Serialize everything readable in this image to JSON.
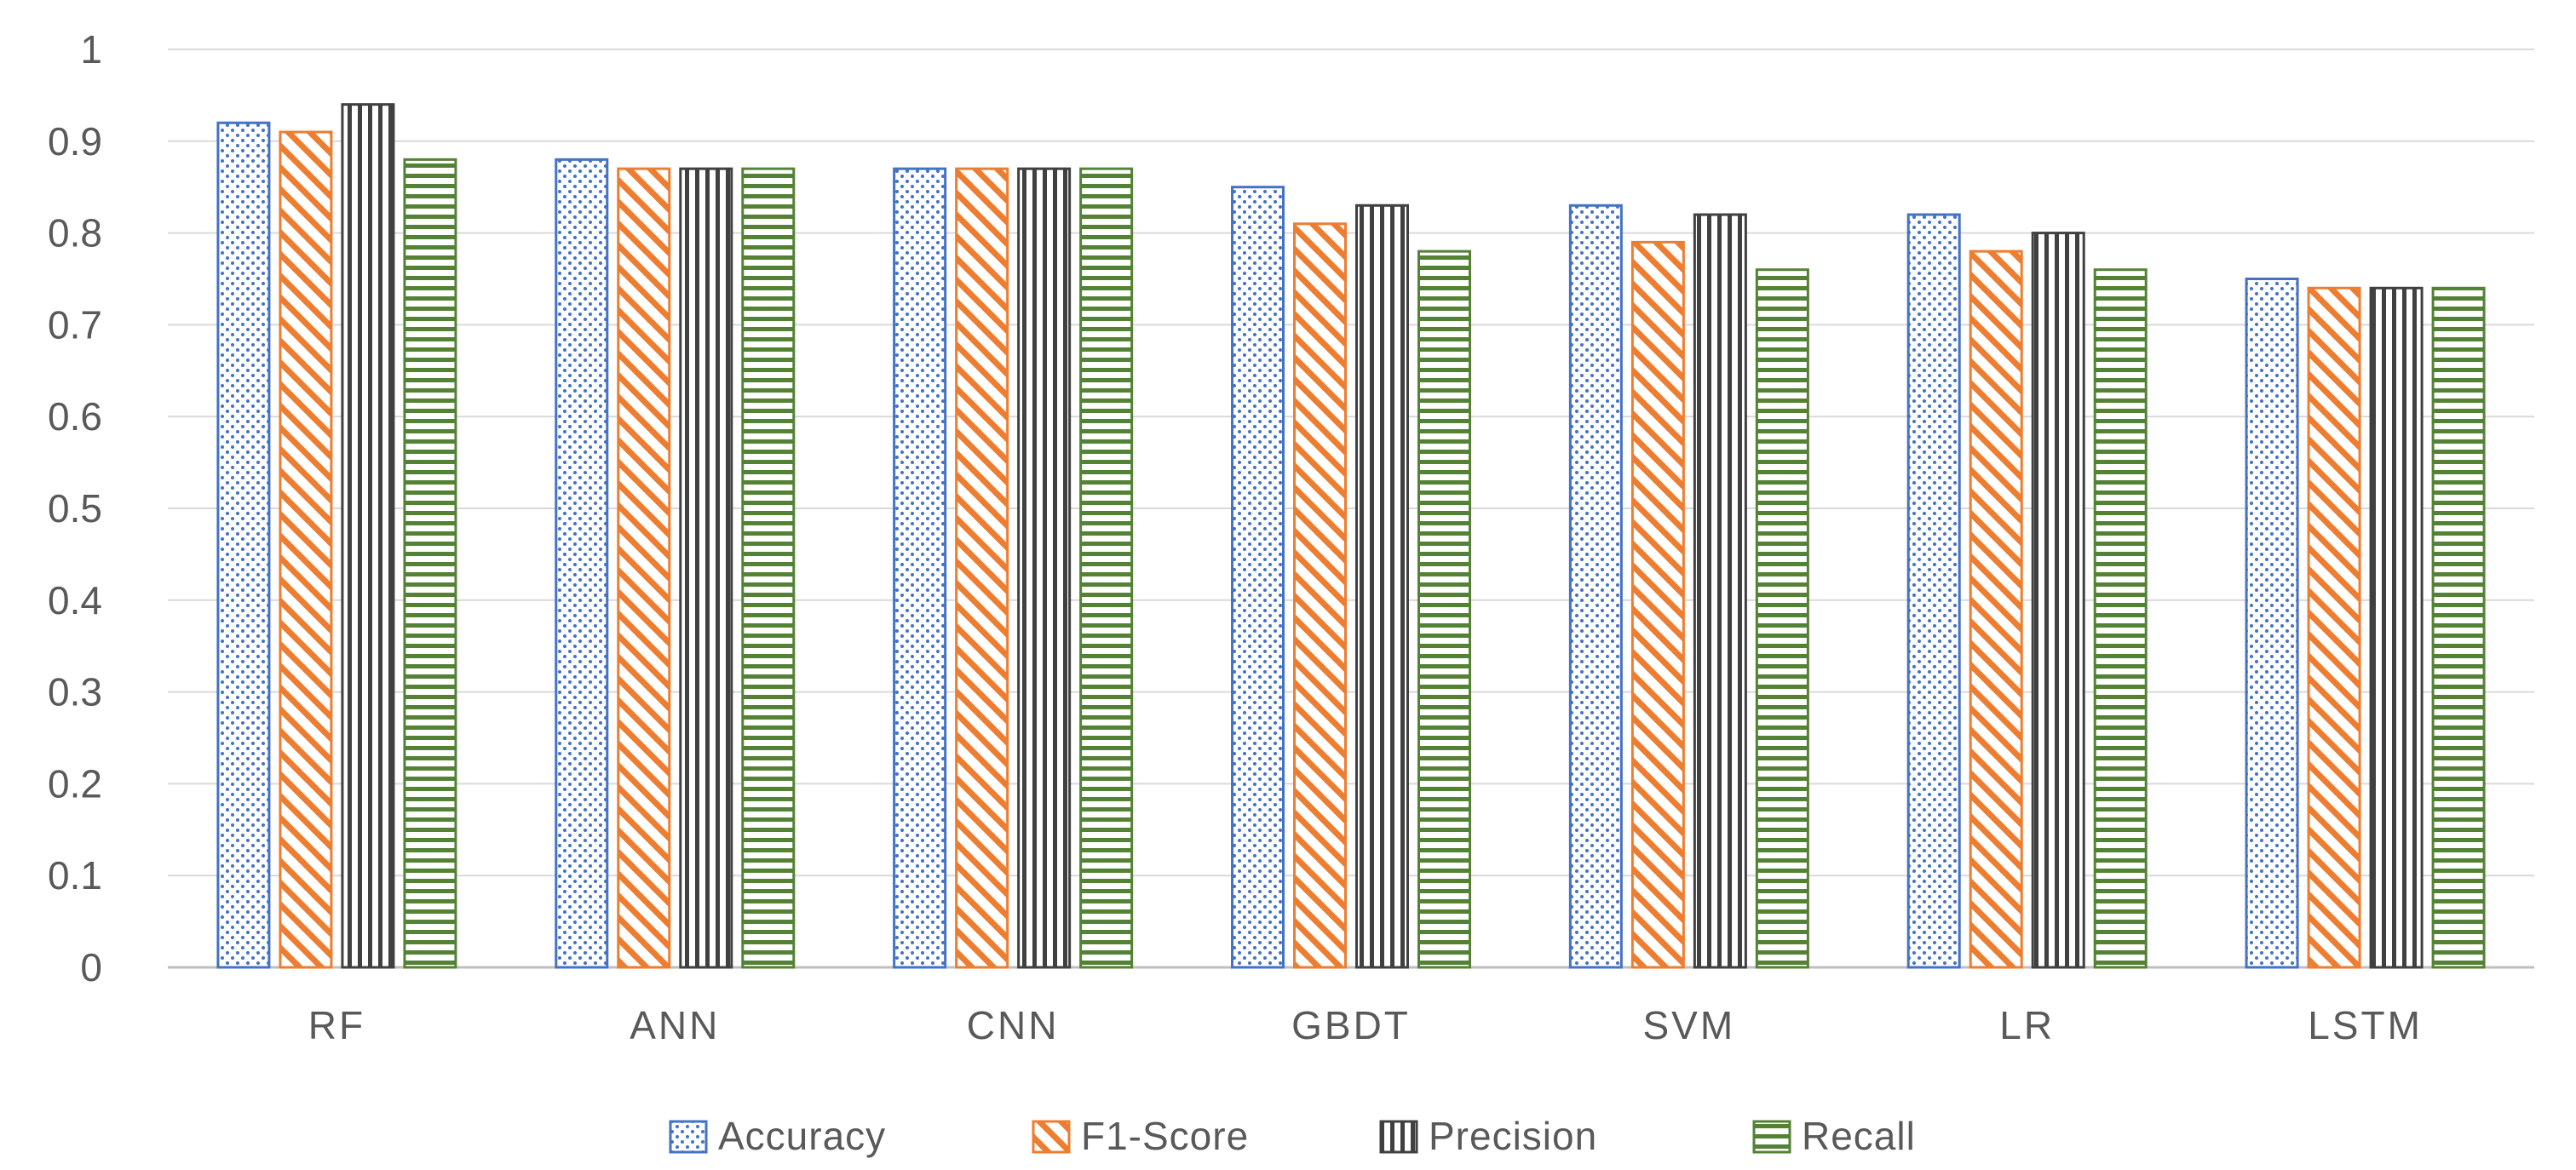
{
  "chart_data": {
    "type": "bar",
    "categories": [
      "RF",
      "ANN",
      "CNN",
      "GBDT",
      "SVM",
      "LR",
      "LSTM"
    ],
    "series": [
      {
        "name": "Accuracy",
        "values": [
          0.92,
          0.88,
          0.87,
          0.85,
          0.83,
          0.82,
          0.75
        ],
        "color": "#4472C4",
        "pattern": "dots"
      },
      {
        "name": "F1-Score",
        "values": [
          0.91,
          0.87,
          0.87,
          0.81,
          0.79,
          0.78,
          0.74
        ],
        "color": "#ED7D31",
        "pattern": "diagonal"
      },
      {
        "name": "Precision",
        "values": [
          0.94,
          0.87,
          0.87,
          0.83,
          0.82,
          0.8,
          0.74
        ],
        "color": "#404040",
        "pattern": "vertical"
      },
      {
        "name": "Recall",
        "values": [
          0.88,
          0.87,
          0.87,
          0.78,
          0.76,
          0.76,
          0.74
        ],
        "color": "#548235",
        "pattern": "horizontal"
      }
    ],
    "y_ticks": [
      "0",
      "0.1",
      "0.2",
      "0.3",
      "0.4",
      "0.5",
      "0.6",
      "0.7",
      "0.8",
      "0.9",
      "1"
    ],
    "ylim": [
      0,
      1
    ],
    "title": "",
    "xlabel": "",
    "ylabel": "",
    "grid": true,
    "legend_position": "bottom"
  }
}
